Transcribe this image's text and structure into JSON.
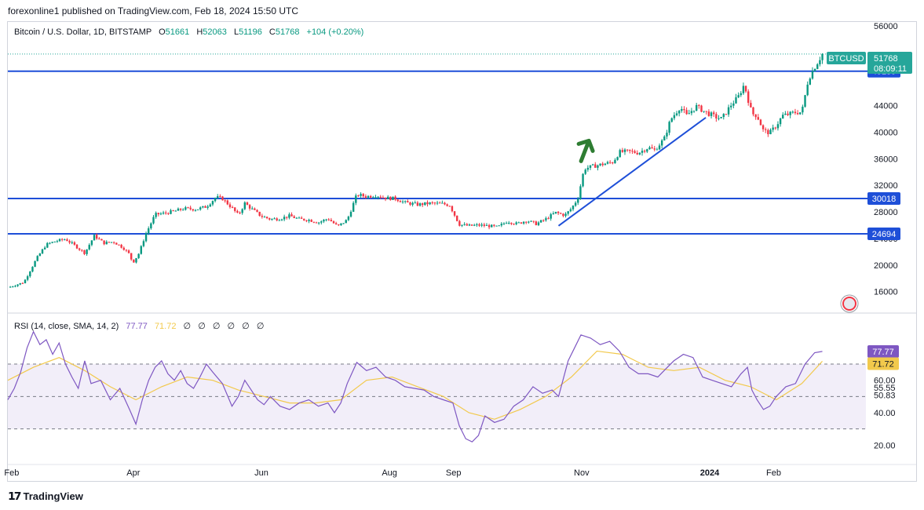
{
  "header": {
    "published": "forexonline1 published on TradingView.com, Feb 18, 2024 15:50 UTC"
  },
  "legend": {
    "symbol": "Bitcoin / U.S. Dollar, 1D, BITSTAMP",
    "open_label": "O",
    "open": "51661",
    "high_label": "H",
    "high": "52063",
    "low_label": "L",
    "low": "51196",
    "close_label": "C",
    "close": "51768",
    "change": "+104 (+0.20%)"
  },
  "rsi_legend": {
    "title": "RSI (14, close, SMA, 14, 2)",
    "rsi": "77.77",
    "sma": "71.72",
    "nulls": [
      "∅",
      "∅",
      "∅",
      "∅",
      "∅",
      "∅"
    ]
  },
  "footer": {
    "brand": "TradingView"
  },
  "price_tags": {
    "symbol": "BTCUSD",
    "price": "51768",
    "countdown": "08:09:11"
  },
  "colors": {
    "up": "#089981",
    "down": "#f23645",
    "level": "#1e4fd8",
    "rsi": "#7e57c2",
    "rsi_sma": "#f2c94c",
    "arrow": "#2e7d32",
    "tag_green": "#26a69a"
  },
  "chart_data": {
    "type": "candlestick",
    "price_axis": {
      "ticks": [
        56000,
        44000,
        40000,
        36000,
        32000,
        28000,
        24000,
        20000,
        16000
      ],
      "ylim": [
        13000,
        56600
      ]
    },
    "x_axis": {
      "labels": [
        {
          "text": "Feb",
          "x": 0.06
        },
        {
          "text": "Apr",
          "x": 1.96
        },
        {
          "text": "Jun",
          "x": 3.96
        },
        {
          "text": "Aug",
          "x": 5.96
        },
        {
          "text": "Sep",
          "x": 6.96
        },
        {
          "text": "Nov",
          "x": 8.96
        },
        {
          "text": "2024",
          "x": 10.96,
          "bold": true
        },
        {
          "text": "Feb",
          "x": 11.96
        }
      ]
    },
    "levels": [
      {
        "price": 49189,
        "label": "49189"
      },
      {
        "price": 30018,
        "label": "30018"
      },
      {
        "price": 24694,
        "label": "24694"
      }
    ],
    "trendline": {
      "from": [
        8.6,
        25900
      ],
      "to": [
        10.9,
        42200
      ]
    },
    "arrow": {
      "at": [
        9.0,
        38000
      ]
    },
    "price_path": [
      [
        0.0,
        16600
      ],
      [
        0.25,
        17400
      ],
      [
        0.45,
        21000
      ],
      [
        0.6,
        23100
      ],
      [
        0.75,
        23600
      ],
      [
        0.9,
        23900
      ],
      [
        1.05,
        22900
      ],
      [
        1.2,
        21800
      ],
      [
        1.35,
        24400
      ],
      [
        1.5,
        23300
      ],
      [
        1.65,
        23500
      ],
      [
        1.8,
        22600
      ],
      [
        1.9,
        21600
      ],
      [
        1.95,
        20300
      ],
      [
        2.05,
        21800
      ],
      [
        2.15,
        24600
      ],
      [
        2.3,
        27600
      ],
      [
        2.45,
        27800
      ],
      [
        2.6,
        28100
      ],
      [
        2.75,
        28500
      ],
      [
        2.95,
        28400
      ],
      [
        3.1,
        28800
      ],
      [
        3.25,
        30200
      ],
      [
        3.35,
        30000
      ],
      [
        3.5,
        28600
      ],
      [
        3.6,
        27500
      ],
      [
        3.7,
        29300
      ],
      [
        3.8,
        28500
      ],
      [
        3.95,
        27400
      ],
      [
        4.1,
        26900
      ],
      [
        4.25,
        27000
      ],
      [
        4.4,
        27400
      ],
      [
        4.55,
        26900
      ],
      [
        4.7,
        26800
      ],
      [
        4.85,
        26400
      ],
      [
        5.0,
        27000
      ],
      [
        5.15,
        25800
      ],
      [
        5.3,
        26800
      ],
      [
        5.45,
        30600
      ],
      [
        5.6,
        30300
      ],
      [
        5.75,
        30500
      ],
      [
        5.9,
        30100
      ],
      [
        6.05,
        30000
      ],
      [
        6.2,
        29400
      ],
      [
        6.4,
        29100
      ],
      [
        6.6,
        29300
      ],
      [
        6.8,
        29200
      ],
      [
        6.9,
        29000
      ],
      [
        7.05,
        26100
      ],
      [
        7.2,
        25900
      ],
      [
        7.35,
        26000
      ],
      [
        7.5,
        25900
      ],
      [
        7.65,
        25700
      ],
      [
        7.8,
        26600
      ],
      [
        7.95,
        26200
      ],
      [
        8.1,
        26700
      ],
      [
        8.25,
        26200
      ],
      [
        8.4,
        26900
      ],
      [
        8.55,
        27900
      ],
      [
        8.7,
        27500
      ],
      [
        8.8,
        28500
      ],
      [
        8.9,
        30000
      ],
      [
        9.0,
        34500
      ],
      [
        9.15,
        34900
      ],
      [
        9.3,
        35200
      ],
      [
        9.45,
        35500
      ],
      [
        9.55,
        37000
      ],
      [
        9.7,
        37100
      ],
      [
        9.85,
        36900
      ],
      [
        10.0,
        37700
      ],
      [
        10.1,
        37300
      ],
      [
        10.25,
        39000
      ],
      [
        10.35,
        41900
      ],
      [
        10.5,
        43800
      ],
      [
        10.6,
        42500
      ],
      [
        10.75,
        43900
      ],
      [
        10.9,
        43000
      ],
      [
        11.05,
        42300
      ],
      [
        11.15,
        42000
      ],
      [
        11.3,
        44200
      ],
      [
        11.4,
        45200
      ],
      [
        11.5,
        47200
      ],
      [
        11.58,
        44200
      ],
      [
        11.62,
        42800
      ],
      [
        11.7,
        42500
      ],
      [
        11.8,
        40200
      ],
      [
        11.9,
        39900
      ],
      [
        12.0,
        41000
      ],
      [
        12.1,
        42500
      ],
      [
        12.2,
        42700
      ],
      [
        12.3,
        43000
      ],
      [
        12.4,
        43000
      ],
      [
        12.5,
        48000
      ],
      [
        12.6,
        49800
      ],
      [
        12.72,
        51768
      ]
    ],
    "rsi_axis": {
      "ticks": [
        60,
        55.55,
        50.83,
        40,
        20
      ],
      "ylim": [
        10,
        100
      ],
      "bands": [
        70,
        50,
        30
      ]
    },
    "rsi": [
      [
        0,
        48
      ],
      [
        0.1,
        55
      ],
      [
        0.2,
        65
      ],
      [
        0.3,
        80
      ],
      [
        0.4,
        90
      ],
      [
        0.5,
        82
      ],
      [
        0.6,
        85
      ],
      [
        0.7,
        76
      ],
      [
        0.8,
        83
      ],
      [
        0.9,
        70
      ],
      [
        1.0,
        62
      ],
      [
        1.1,
        55
      ],
      [
        1.2,
        72
      ],
      [
        1.3,
        58
      ],
      [
        1.45,
        60
      ],
      [
        1.6,
        48
      ],
      [
        1.75,
        55
      ],
      [
        1.9,
        42
      ],
      [
        2.0,
        33
      ],
      [
        2.1,
        48
      ],
      [
        2.2,
        60
      ],
      [
        2.3,
        68
      ],
      [
        2.4,
        72
      ],
      [
        2.5,
        64
      ],
      [
        2.6,
        60
      ],
      [
        2.7,
        66
      ],
      [
        2.8,
        58
      ],
      [
        2.9,
        55
      ],
      [
        3.0,
        62
      ],
      [
        3.1,
        70
      ],
      [
        3.2,
        65
      ],
      [
        3.35,
        58
      ],
      [
        3.5,
        44
      ],
      [
        3.6,
        50
      ],
      [
        3.7,
        60
      ],
      [
        3.8,
        54
      ],
      [
        3.9,
        48
      ],
      [
        4.0,
        45
      ],
      [
        4.1,
        50
      ],
      [
        4.25,
        44
      ],
      [
        4.4,
        42
      ],
      [
        4.55,
        46
      ],
      [
        4.7,
        48
      ],
      [
        4.85,
        44
      ],
      [
        5.0,
        46
      ],
      [
        5.1,
        40
      ],
      [
        5.2,
        46
      ],
      [
        5.3,
        58
      ],
      [
        5.45,
        71
      ],
      [
        5.6,
        66
      ],
      [
        5.75,
        68
      ],
      [
        5.9,
        62
      ],
      [
        6.05,
        60
      ],
      [
        6.2,
        56
      ],
      [
        6.35,
        55
      ],
      [
        6.5,
        54
      ],
      [
        6.65,
        50
      ],
      [
        6.8,
        48
      ],
      [
        6.95,
        46
      ],
      [
        7.05,
        32
      ],
      [
        7.15,
        24
      ],
      [
        7.25,
        22
      ],
      [
        7.35,
        26
      ],
      [
        7.45,
        38
      ],
      [
        7.6,
        34
      ],
      [
        7.75,
        36
      ],
      [
        7.9,
        44
      ],
      [
        8.05,
        48
      ],
      [
        8.2,
        56
      ],
      [
        8.35,
        52
      ],
      [
        8.5,
        54
      ],
      [
        8.6,
        50
      ],
      [
        8.75,
        72
      ],
      [
        8.85,
        80
      ],
      [
        8.95,
        88
      ],
      [
        9.1,
        86
      ],
      [
        9.25,
        82
      ],
      [
        9.4,
        84
      ],
      [
        9.55,
        78
      ],
      [
        9.7,
        68
      ],
      [
        9.85,
        64
      ],
      [
        10.0,
        64
      ],
      [
        10.15,
        62
      ],
      [
        10.3,
        68
      ],
      [
        10.4,
        72
      ],
      [
        10.55,
        76
      ],
      [
        10.7,
        74
      ],
      [
        10.85,
        62
      ],
      [
        11.0,
        60
      ],
      [
        11.15,
        58
      ],
      [
        11.3,
        56
      ],
      [
        11.45,
        64
      ],
      [
        11.55,
        68
      ],
      [
        11.62,
        54
      ],
      [
        11.7,
        48
      ],
      [
        11.8,
        42
      ],
      [
        11.9,
        44
      ],
      [
        12.0,
        50
      ],
      [
        12.15,
        56
      ],
      [
        12.3,
        58
      ],
      [
        12.45,
        70
      ],
      [
        12.6,
        77
      ],
      [
        12.72,
        77.77
      ]
    ],
    "rsi_sma": [
      [
        0,
        60
      ],
      [
        0.4,
        68
      ],
      [
        0.8,
        74
      ],
      [
        1.2,
        66
      ],
      [
        1.6,
        56
      ],
      [
        2.0,
        48
      ],
      [
        2.4,
        56
      ],
      [
        2.8,
        62
      ],
      [
        3.2,
        60
      ],
      [
        3.6,
        54
      ],
      [
        4.0,
        50
      ],
      [
        4.4,
        46
      ],
      [
        4.8,
        46
      ],
      [
        5.2,
        48
      ],
      [
        5.6,
        60
      ],
      [
        6.0,
        62
      ],
      [
        6.4,
        56
      ],
      [
        6.8,
        50
      ],
      [
        7.2,
        40
      ],
      [
        7.6,
        36
      ],
      [
        8.0,
        42
      ],
      [
        8.4,
        50
      ],
      [
        8.8,
        62
      ],
      [
        9.2,
        78
      ],
      [
        9.6,
        76
      ],
      [
        10.0,
        68
      ],
      [
        10.4,
        66
      ],
      [
        10.8,
        68
      ],
      [
        11.2,
        60
      ],
      [
        11.6,
        56
      ],
      [
        12.0,
        48
      ],
      [
        12.4,
        58
      ],
      [
        12.72,
        71.72
      ]
    ]
  }
}
